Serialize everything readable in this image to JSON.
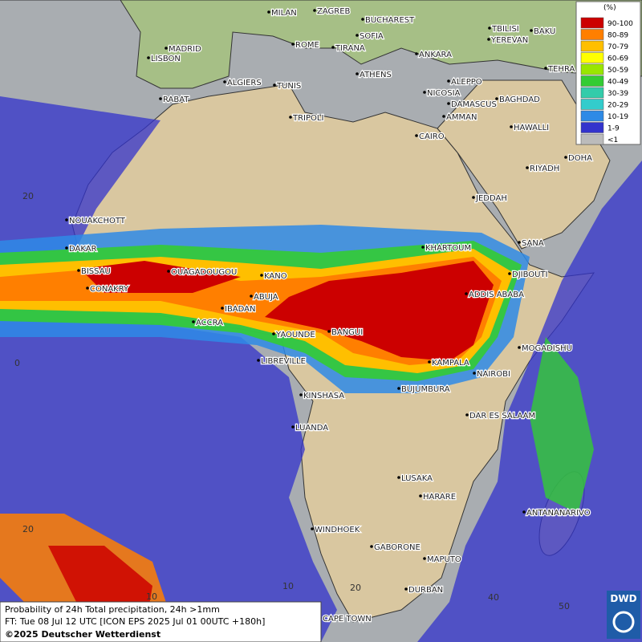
{
  "legend": {
    "title": "(%)",
    "items": [
      {
        "label": "90-100",
        "color": "#cc0000"
      },
      {
        "label": "80-89",
        "color": "#ff7f00"
      },
      {
        "label": "70-79",
        "color": "#ffbf00"
      },
      {
        "label": "60-69",
        "color": "#ffff00"
      },
      {
        "label": "50-59",
        "color": "#99e600"
      },
      {
        "label": "40-49",
        "color": "#33cc33"
      },
      {
        "label": "30-39",
        "color": "#33ccaa"
      },
      {
        "label": "20-29",
        "color": "#33cccc"
      },
      {
        "label": "10-19",
        "color": "#2e8ae6"
      },
      {
        "label": "1-9",
        "color": "#3333cc"
      },
      {
        "label": "<1",
        "color": "#bbbbbb"
      }
    ]
  },
  "cities": [
    "MILAN",
    "ZAGREB",
    "BUCHAREST",
    "BAKU",
    "TBILISI",
    "SOFIA",
    "YEREVAN",
    "ROME",
    "TIRANA",
    "MADRID",
    "ANKARA",
    "LISBON",
    "ATHENS",
    "TEHRA",
    "ALGIERS",
    "TUNIS",
    "ALEPPO",
    "RABAT",
    "NICOSIA",
    "BAGHDAD",
    "DAMASCUS",
    "TRIPOLI",
    "AMMAN",
    "HAWALLI",
    "CAIRO",
    "DOHA",
    "RIYADH",
    "JEDDAH",
    "NOUAKCHOTT",
    "SANA",
    "KHARTOUM",
    "DAKAR",
    "DJIBOUTI",
    "BISSAU",
    "OUAGADOUGOU",
    "KANO",
    "CONAKRY",
    "ADDIS ABABA",
    "ABUJA",
    "IBADAN",
    "ACCRA",
    "BANGUI",
    "YAOUNDE",
    "MOGADISHU",
    "LIBREVILLE",
    "KAMPALA",
    "NAIROBI",
    "BUJUMBURA",
    "KINSHASA",
    "DAR ES SALAAM",
    "LUANDA",
    "LUSAKA",
    "HARARE",
    "ANTANANARIVO",
    "WINDHOEK",
    "GABORONE",
    "MAPUTO",
    "DURBAN",
    "CAPE TOWN"
  ],
  "grid_labels": [
    "20",
    "0",
    "20",
    "10",
    "10",
    "20",
    "40",
    "50"
  ],
  "footer": {
    "lines": [
      "Probability of 24h Total precipitation, 24h >1mm",
      "FT: Tue 08 Jul 12 UTC [ICON EPS 2025 Jul 01 00UTC +180h]",
      "©2025 Deutscher Wetterdienst"
    ]
  },
  "logo": "DWD"
}
